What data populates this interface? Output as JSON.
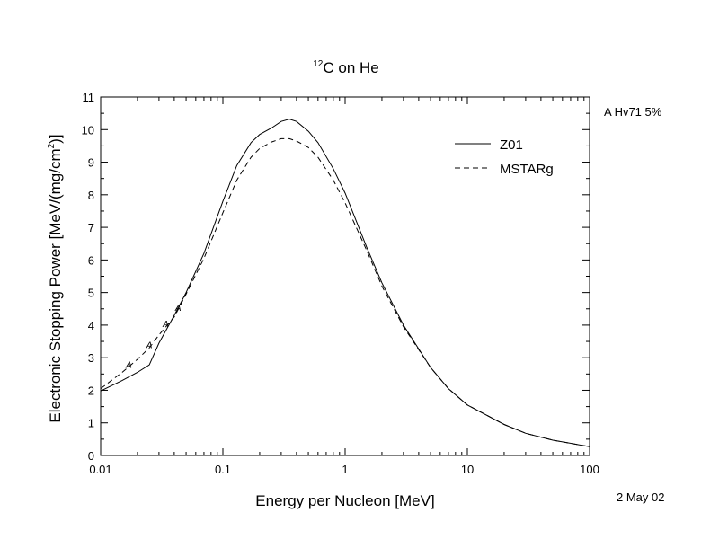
{
  "chart_data": {
    "type": "line",
    "title": {
      "superscript": "12",
      "text": "C on He"
    },
    "xlabel": "Energy per Nucleon [MeV]",
    "ylabel": {
      "before": "Electronic Stopping Power [MeV/(mg/cm",
      "superscript": "2",
      "after": ")]"
    },
    "x_scale": "log",
    "xlim": [
      0.01,
      100
    ],
    "ylim": [
      0,
      11
    ],
    "x_ticks": [
      0.01,
      0.1,
      1,
      10,
      100
    ],
    "x_tick_labels": [
      "0.01",
      "0.1",
      "1",
      "10",
      "100"
    ],
    "y_ticks": [
      0,
      1,
      2,
      3,
      4,
      5,
      6,
      7,
      8,
      9,
      10,
      11
    ],
    "y_tick_labels": [
      "0",
      "1",
      "2",
      "3",
      "4",
      "5",
      "6",
      "7",
      "8",
      "9",
      "10",
      "11"
    ],
    "grid": false,
    "legend_position": "top-right",
    "series": [
      {
        "name": "Z01",
        "style": "solid",
        "x": [
          0.01,
          0.015,
          0.02,
          0.025,
          0.03,
          0.04,
          0.05,
          0.07,
          0.1,
          0.13,
          0.17,
          0.2,
          0.25,
          0.3,
          0.35,
          0.4,
          0.5,
          0.6,
          0.8,
          1,
          1.5,
          2,
          3,
          5,
          7,
          10,
          20,
          30,
          50,
          100
        ],
        "values": [
          1.98,
          2.3,
          2.55,
          2.78,
          3.45,
          4.3,
          5.0,
          6.2,
          7.8,
          8.9,
          9.6,
          9.85,
          10.05,
          10.25,
          10.32,
          10.25,
          9.95,
          9.6,
          8.8,
          8.05,
          6.4,
          5.3,
          4.0,
          2.7,
          2.05,
          1.55,
          0.95,
          0.68,
          0.47,
          0.27
        ]
      },
      {
        "name": "MSTARg",
        "style": "dashed",
        "x": [
          0.01,
          0.015,
          0.02,
          0.025,
          0.03,
          0.04,
          0.05,
          0.07,
          0.1,
          0.13,
          0.17,
          0.2,
          0.25,
          0.3,
          0.35,
          0.4,
          0.5,
          0.6,
          0.8,
          1,
          1.5,
          2,
          3,
          5,
          7,
          10,
          20,
          30,
          50,
          100
        ],
        "values": [
          2.05,
          2.55,
          2.95,
          3.3,
          3.7,
          4.25,
          4.95,
          6.05,
          7.45,
          8.45,
          9.15,
          9.42,
          9.62,
          9.72,
          9.72,
          9.65,
          9.45,
          9.15,
          8.45,
          7.75,
          6.3,
          5.2,
          3.95,
          2.7,
          2.05,
          1.55,
          0.95,
          0.68,
          0.47,
          0.27
        ]
      }
    ],
    "markers": {
      "label": "A",
      "points": [
        {
          "x": 0.017,
          "y": 2.8
        },
        {
          "x": 0.025,
          "y": 3.4
        },
        {
          "x": 0.034,
          "y": 4.05
        },
        {
          "x": 0.043,
          "y": 4.55
        }
      ]
    }
  },
  "side_note": "A Hv71 5%",
  "date_note": "2 May 02"
}
